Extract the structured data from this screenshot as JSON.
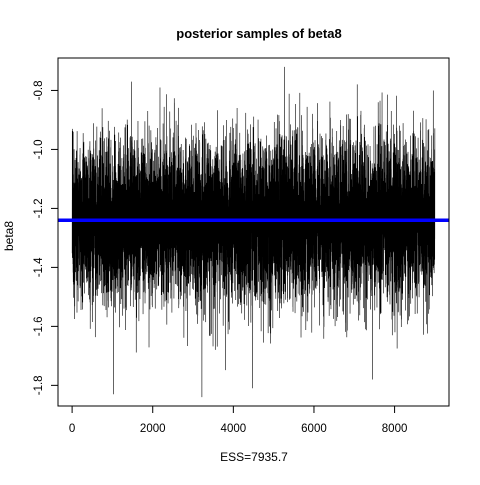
{
  "chart_data": {
    "type": "line",
    "title": "posterior samples of beta8",
    "xlabel": "ESS=7935.7",
    "ylabel": "beta8",
    "xlim": [
      -350,
      9350
    ],
    "ylim": [
      -1.87,
      -0.69
    ],
    "x_ticks": [
      0,
      2000,
      4000,
      6000,
      8000
    ],
    "x_tick_labels": [
      "0",
      "2000",
      "4000",
      "6000",
      "8000"
    ],
    "y_ticks": [
      -1.8,
      -1.6,
      -1.4,
      -1.2,
      -1.0,
      -0.8
    ],
    "y_tick_labels": [
      "-1.8",
      "-1.6",
      "-1.4",
      "-1.2",
      "-1.0",
      "-0.8"
    ],
    "grid": false,
    "legend": "none",
    "series": [
      {
        "kind": "trace",
        "color": "#000000",
        "n_samples": 9000,
        "center": -1.24,
        "typical_range": [
          -1.6,
          -0.9
        ],
        "extremes": [
          {
            "x": 1030,
            "y": -1.83
          },
          {
            "x": 3220,
            "y": -1.84
          },
          {
            "x": 4480,
            "y": -1.81
          },
          {
            "x": 5270,
            "y": -0.72
          },
          {
            "x": 2180,
            "y": -0.79
          },
          {
            "x": 1470,
            "y": -0.77
          },
          {
            "x": 8960,
            "y": -0.8
          },
          {
            "x": 7450,
            "y": -1.78
          }
        ]
      },
      {
        "kind": "hline",
        "color": "#0000ff",
        "y": -1.24
      }
    ]
  }
}
